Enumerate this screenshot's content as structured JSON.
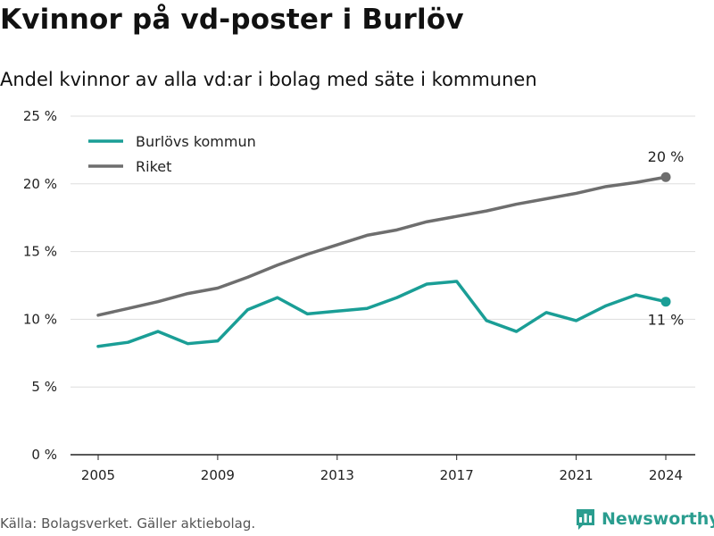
{
  "title": "Kvinnor på vd-poster i Burlöv",
  "subtitle": "Andel kvinnor av alla vd:ar i bolag med säte i kommunen",
  "source": "Källa: Bolagsverket. Gäller aktiebolag.",
  "brand": "Newsworthy",
  "colors": {
    "burlov": "#1a9e96",
    "riket": "#6e6e6e",
    "grid": "#dddddd",
    "axis": "#222222"
  },
  "icons": {
    "brand": "newsworthy-logo-icon"
  },
  "chart_data": {
    "type": "line",
    "x": [
      2005,
      2006,
      2007,
      2008,
      2009,
      2010,
      2011,
      2012,
      2013,
      2014,
      2015,
      2016,
      2017,
      2018,
      2019,
      2020,
      2021,
      2022,
      2023,
      2024
    ],
    "x_ticks": [
      "2005",
      "2009",
      "2013",
      "2017",
      "2021",
      "2024"
    ],
    "y_ticks": [
      "0 %",
      "5 %",
      "10 %",
      "15 %",
      "20 %",
      "25 %"
    ],
    "ylim": [
      0,
      25
    ],
    "grid": true,
    "legend_position": "top-left",
    "series": [
      {
        "name": "Burlövs kommun",
        "color": "#1a9e96",
        "values": [
          8.0,
          8.3,
          9.1,
          8.2,
          8.4,
          10.7,
          11.6,
          10.4,
          10.6,
          10.8,
          11.6,
          12.6,
          12.8,
          9.9,
          9.1,
          10.5,
          9.9,
          11.0,
          11.8,
          11.3
        ],
        "end_label": "11 %"
      },
      {
        "name": "Riket",
        "color": "#6e6e6e",
        "values": [
          10.3,
          10.8,
          11.3,
          11.9,
          12.3,
          13.1,
          14.0,
          14.8,
          15.5,
          16.2,
          16.6,
          17.2,
          17.6,
          18.0,
          18.5,
          18.9,
          19.3,
          19.8,
          20.1,
          20.5
        ],
        "end_label": "20 %"
      }
    ]
  }
}
